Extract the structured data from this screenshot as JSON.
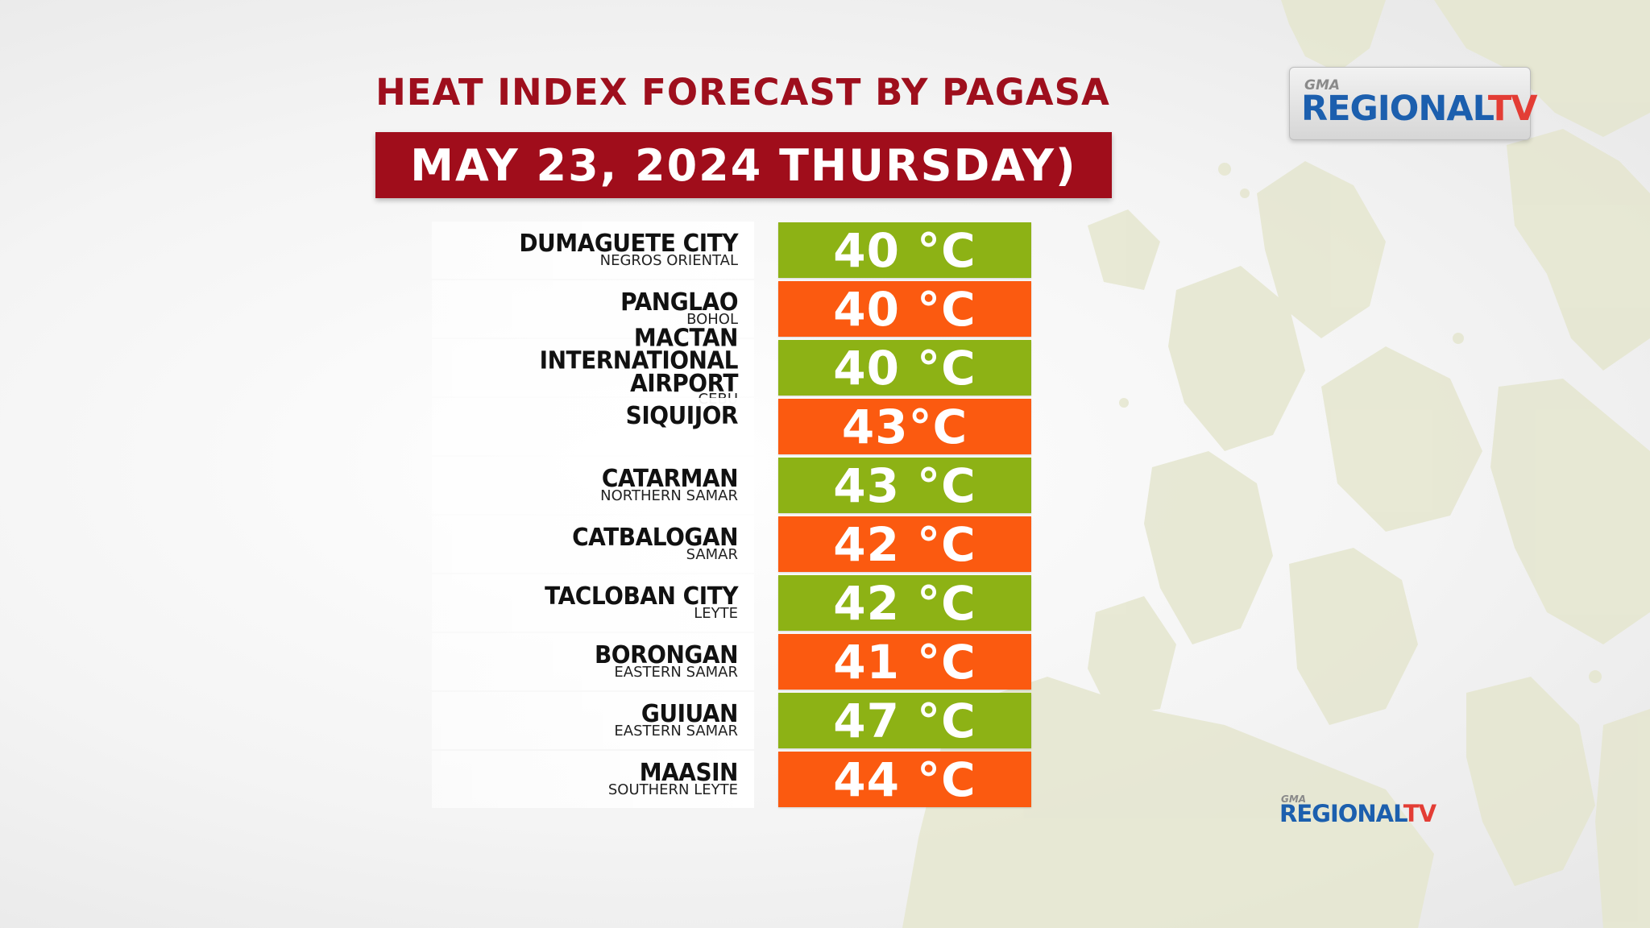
{
  "title": "HEAT INDEX FORECAST BY PAGASA",
  "date": "MAY 23, 2024 THURSDAY)",
  "logo": {
    "small": "GMA",
    "brand_main": "REGIONAL",
    "brand_tv": "TV"
  },
  "rows": [
    {
      "name": "DUMAGUETE CITY",
      "province": "NEGROS ORIENTAL",
      "temp": "40 °C",
      "color": "#8db215"
    },
    {
      "name": "PANGLAO",
      "province": "BOHOL",
      "temp": "40 °C",
      "color": "#fb5a10"
    },
    {
      "name": "MACTAN INTERNATIONAL AIRPORT",
      "province": "CEBU",
      "temp": "40 °C",
      "color": "#8db215"
    },
    {
      "name": "SIQUIJOR",
      "province": "",
      "temp": "43°C",
      "color": "#fb5a10"
    },
    {
      "name": "CATARMAN",
      "province": "NORTHERN SAMAR",
      "temp": "43 °C",
      "color": "#8db215"
    },
    {
      "name": "CATBALOGAN",
      "province": "SAMAR",
      "temp": "42 °C",
      "color": "#fb5a10"
    },
    {
      "name": "TACLOBAN CITY",
      "province": "LEYTE",
      "temp": "42 °C",
      "color": "#8db215"
    },
    {
      "name": "BORONGAN",
      "province": "EASTERN SAMAR",
      "temp": "41 °C",
      "color": "#fb5a10"
    },
    {
      "name": "GUIUAN",
      "province": "EASTERN SAMAR",
      "temp": "47 °C",
      "color": "#8db215"
    },
    {
      "name": "MAASIN",
      "province": "SOUTHERN LEYTE",
      "temp": "44 °C",
      "color": "#fb5a10"
    }
  ],
  "colors": {
    "title": "#9e0f1d",
    "banner": "#a00d1b",
    "green": "#8db215",
    "orange": "#fb5a10"
  }
}
